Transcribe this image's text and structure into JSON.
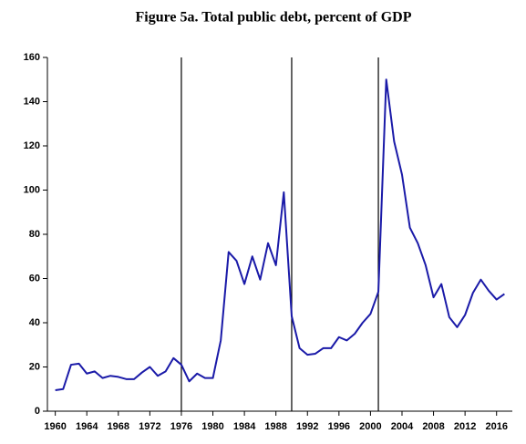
{
  "chart_data": {
    "type": "line",
    "title": "Figure 5a. Total public debt, percent of GDP",
    "x": [
      1960,
      1961,
      1962,
      1963,
      1964,
      1965,
      1966,
      1967,
      1968,
      1969,
      1970,
      1971,
      1972,
      1973,
      1974,
      1975,
      1976,
      1977,
      1978,
      1979,
      1980,
      1981,
      1982,
      1983,
      1984,
      1985,
      1986,
      1987,
      1988,
      1989,
      1990,
      1991,
      1992,
      1993,
      1994,
      1995,
      1996,
      1997,
      1998,
      1999,
      2000,
      2001,
      2002,
      2003,
      2004,
      2005,
      2006,
      2007,
      2008,
      2009,
      2010,
      2011,
      2012,
      2013,
      2014,
      2015,
      2016,
      2017
    ],
    "series": [
      {
        "color": "#1a1aa8",
        "values": [
          9.5,
          10,
          21,
          21.5,
          17,
          18,
          15,
          16,
          15.5,
          14.5,
          14.5,
          17.5,
          20,
          16,
          18,
          24,
          21,
          13.5,
          17,
          15,
          15,
          32,
          72,
          68,
          57.5,
          70,
          59.5,
          76,
          66,
          99,
          43,
          28.5,
          25.5,
          26,
          28.5,
          28.5,
          33.5,
          32,
          35,
          40,
          44,
          54,
          150,
          122,
          107,
          83,
          76,
          66,
          51.5,
          57.5,
          42.5,
          38,
          43.5,
          53.5,
          59.5,
          54.5,
          50.5,
          53
        ]
      }
    ],
    "vlines": [
      1976,
      1990,
      2001
    ],
    "xlim": [
      1959,
      2018
    ],
    "xticks": [
      1960,
      1964,
      1968,
      1972,
      1976,
      1980,
      1984,
      1988,
      1992,
      1996,
      2000,
      2004,
      2008,
      2012,
      2016
    ],
    "ylim": [
      0,
      160
    ],
    "yticks": [
      0,
      20,
      40,
      60,
      80,
      100,
      120,
      140,
      160
    ]
  }
}
